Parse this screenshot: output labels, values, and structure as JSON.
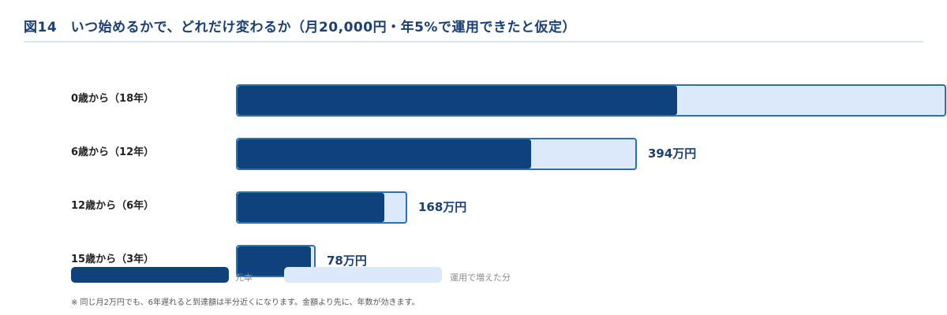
{
  "title": "図14　いつ始めるかで、どれだけ変わるか（月20,000円・年5%で運用できたと仮定）",
  "chart_data": {
    "type": "bar",
    "orientation": "horizontal",
    "stacked": true,
    "categories": [
      "0歳から（18年）",
      "6歳から（12年）",
      "12歳から（6年）",
      "15歳から（3年）"
    ],
    "series": [
      {
        "name": "元本",
        "values": [
          432,
          288,
          144,
          72
        ],
        "color": "#0f417d"
      },
      {
        "name": "運用で増えた分",
        "values": [
          266,
          106,
          24,
          6
        ],
        "color": "#dbe9fb"
      }
    ],
    "totals": [
      698,
      394,
      168,
      78
    ],
    "value_labels": [
      "",
      "394万円",
      "168万円",
      "78万円"
    ],
    "unit": "万円",
    "xlim": [
      0,
      700
    ],
    "legend_position": "bottom-left",
    "grid": false
  },
  "footnote": "※ 同じ月2万円でも、6年遅れると到達額は半分近くになります。金額より先に、年数が効きます。",
  "colors": {
    "principal": "#0f417d",
    "growth": "#dbe9fb",
    "border": "#2872b8",
    "title": "#1a3f73"
  }
}
